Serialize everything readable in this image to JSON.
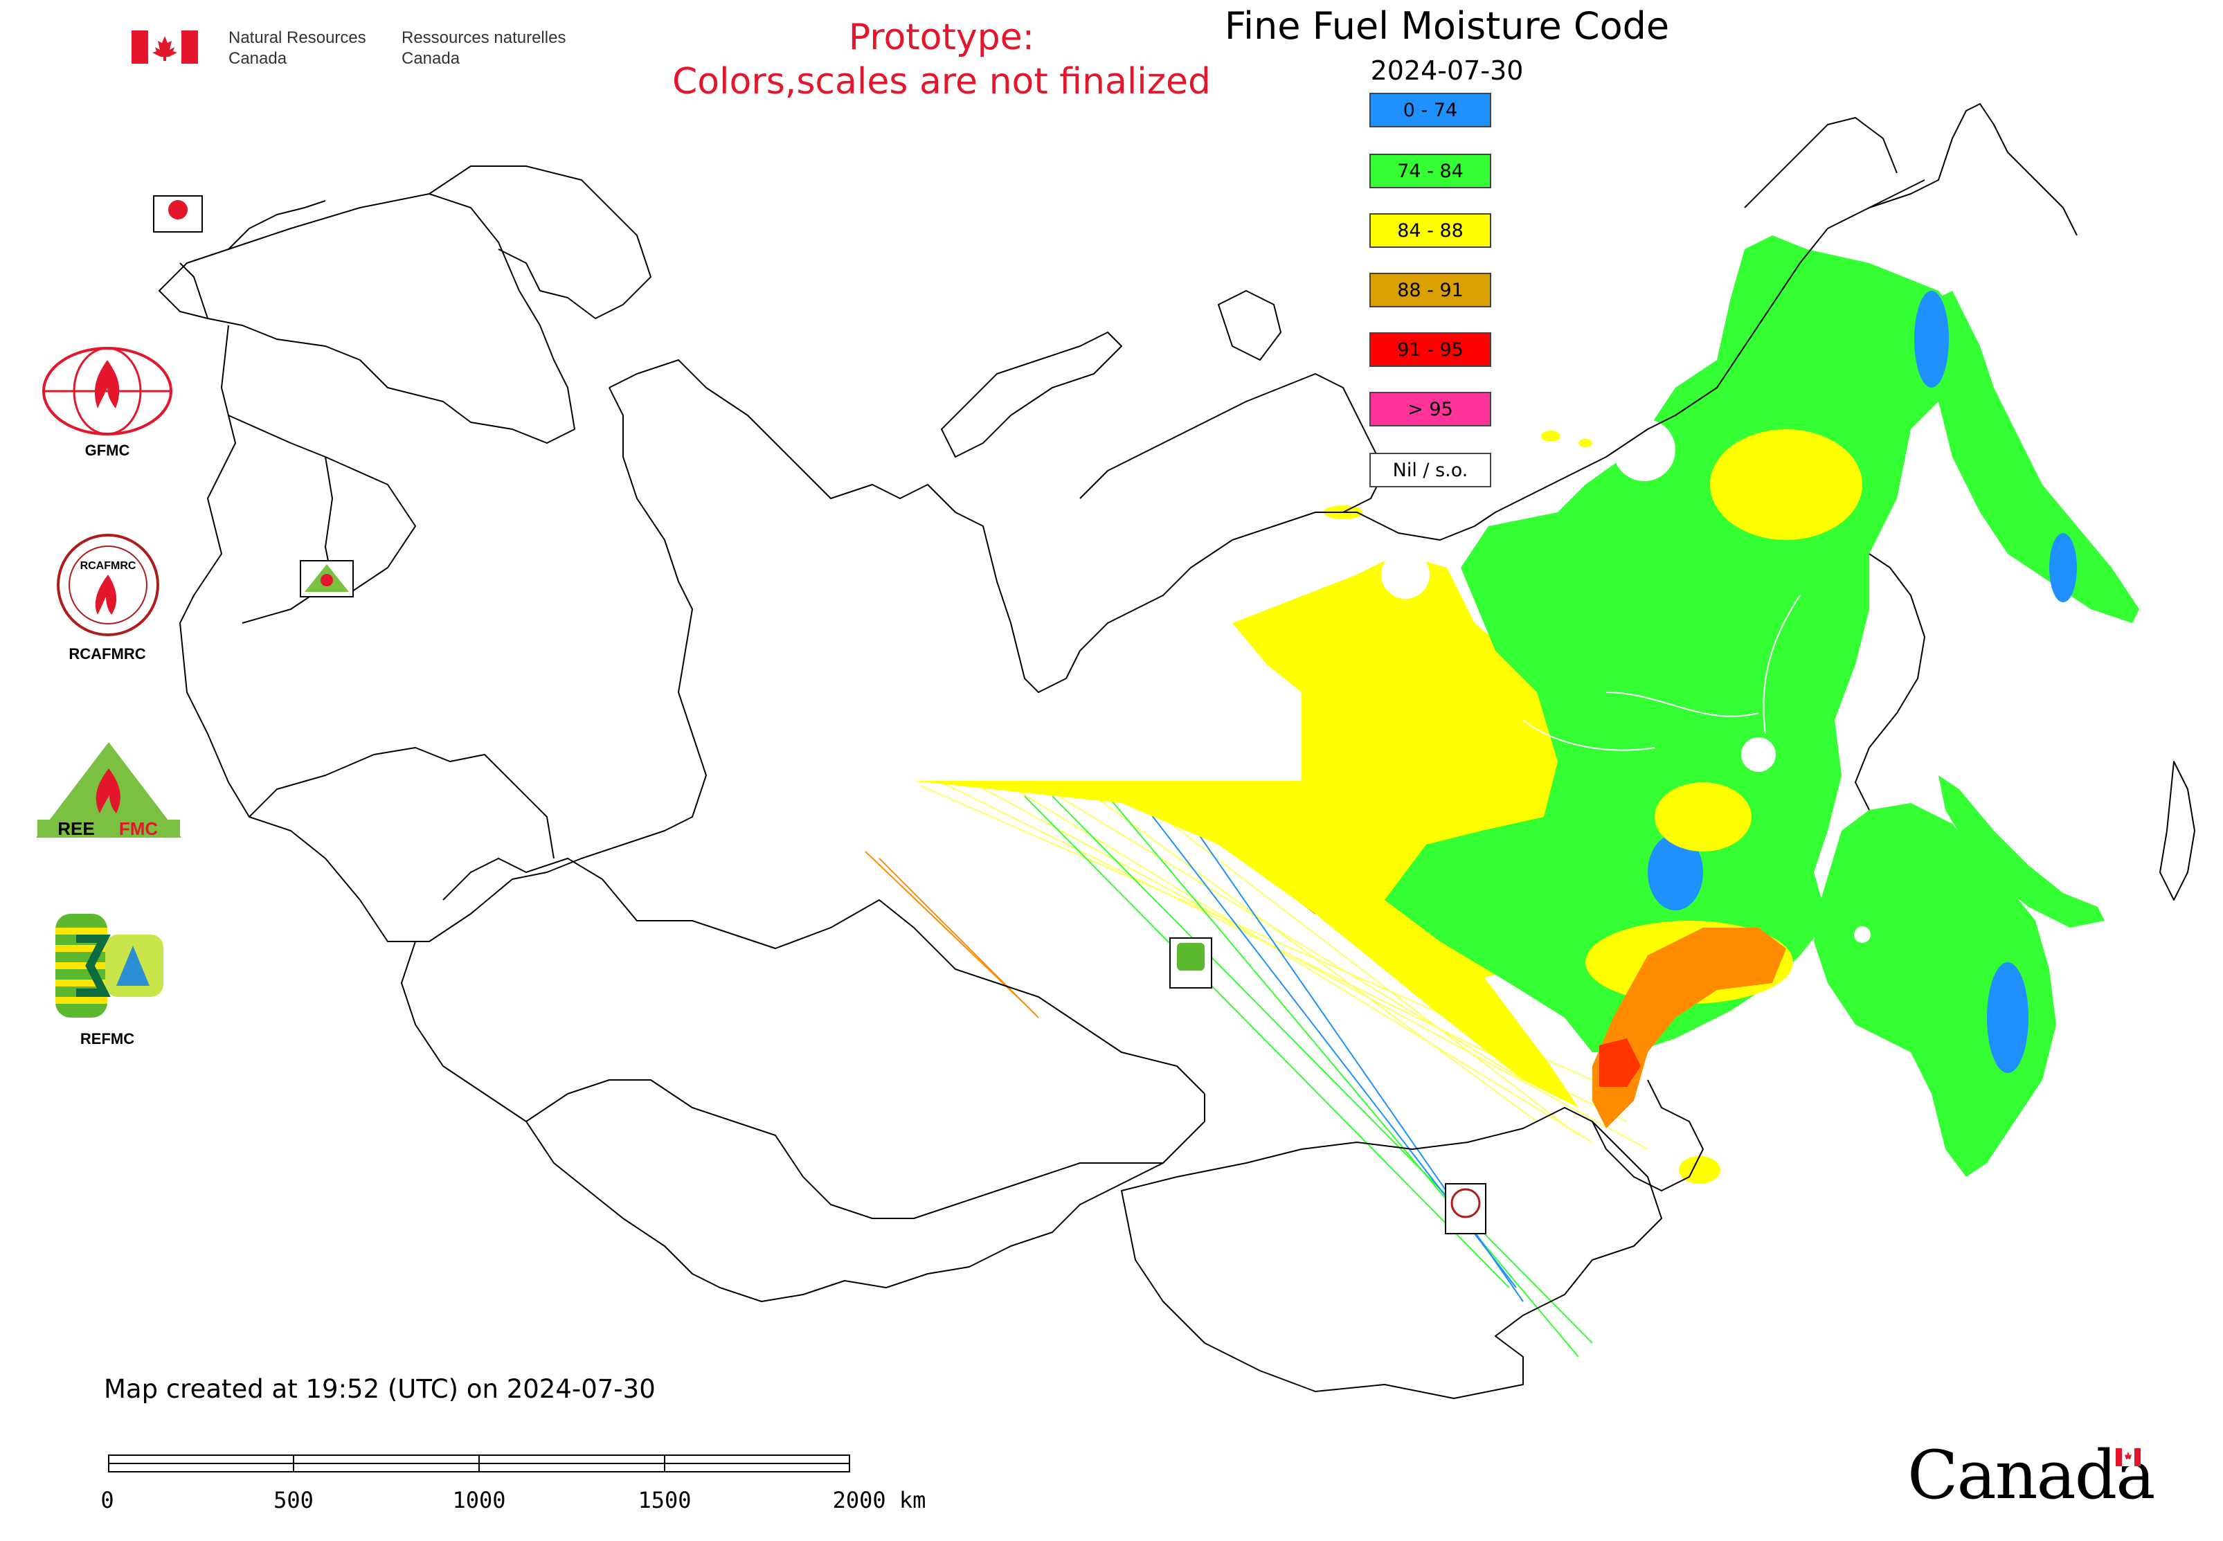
{
  "header": {
    "department_en": "Natural Resources\nCanada",
    "department_fr": "Ressources naturelles\nCanada",
    "prototype_line1": "Prototype:",
    "prototype_line2": "Colors,scales are not finalized"
  },
  "map": {
    "title": "Fine Fuel Moisture Code",
    "date": "2024-07-30"
  },
  "legend": {
    "items": [
      {
        "label": "0 - 74",
        "color": "#1e90ff"
      },
      {
        "label": "74 - 84",
        "color": "#33ff33"
      },
      {
        "label": "84 - 88",
        "color": "#ffff00"
      },
      {
        "label": "88 - 91",
        "color": "#d9a000"
      },
      {
        "label": "91 - 95",
        "color": "#ff0000"
      },
      {
        "label": "> 95",
        "color": "#ff3399"
      },
      {
        "label": "Nil / s.o.",
        "color": "#ffffff"
      }
    ]
  },
  "logos": {
    "gfmc": "GFMC",
    "rcafmrc": "RCAFMRC",
    "reefmc": "REEFMC",
    "refmc": "REFMC",
    "gfmc_small": "GFMC",
    "rcafmrc_small": "RCAFMRC",
    "refmc_small": "REFMC",
    "rcafmrc_ring": "RCAFMRC"
  },
  "footer": {
    "created": "Map created at 19:52 (UTC) on 2024-07-30",
    "scale_labels": [
      "0",
      "500",
      "1000",
      "1500",
      "2000 km"
    ],
    "wordmark": "Canada"
  },
  "colors": {
    "accent_red": "#e4162b",
    "fill_green": "#33ff33",
    "fill_yellow": "#ffff00",
    "fill_orange": "#ff8c00",
    "fill_blue": "#1e90ff"
  }
}
